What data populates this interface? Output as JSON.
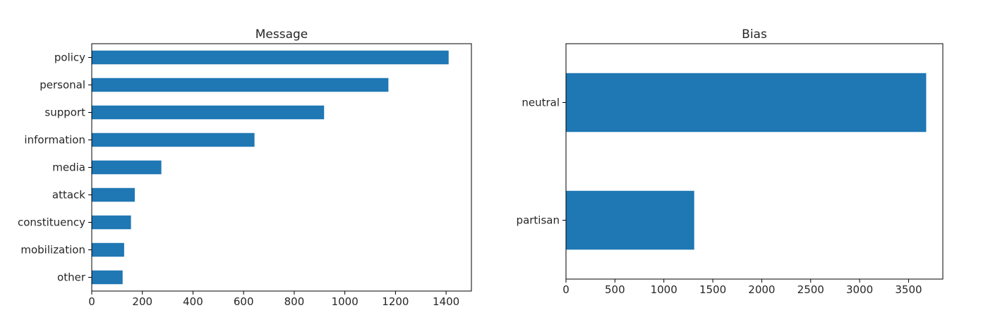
{
  "chart_data": [
    {
      "type": "bar",
      "orientation": "horizontal",
      "title": "Message",
      "xlabel": "",
      "ylabel": "",
      "categories": [
        "policy",
        "personal",
        "support",
        "information",
        "media",
        "attack",
        "constituency",
        "mobilization",
        "other"
      ],
      "values": [
        1410,
        1172,
        918,
        643,
        275,
        170,
        155,
        128,
        122
      ],
      "xlim": [
        0,
        1500
      ],
      "xticks": [
        0,
        200,
        400,
        600,
        800,
        1000,
        1200,
        1400
      ],
      "xtick_labels": [
        "0",
        "200",
        "400",
        "600",
        "800",
        "1000",
        "1200",
        "1400"
      ],
      "grid": false,
      "color": "#1f77b4"
    },
    {
      "type": "bar",
      "orientation": "horizontal",
      "title": "Bias",
      "xlabel": "",
      "ylabel": "",
      "categories": [
        "neutral",
        "partisan"
      ],
      "values": [
        3680,
        1310
      ],
      "xlim": [
        0,
        3850
      ],
      "xticks": [
        0,
        500,
        1000,
        1500,
        2000,
        2500,
        3000,
        3500
      ],
      "xtick_labels": [
        "0",
        "500",
        "1000",
        "1500",
        "2000",
        "2500",
        "3000",
        "3500"
      ],
      "grid": false,
      "color": "#1f77b4"
    }
  ]
}
